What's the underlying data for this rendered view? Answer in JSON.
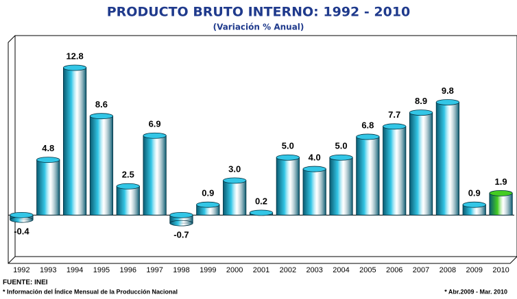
{
  "chart_data": {
    "type": "bar",
    "title": "PRODUCTO BRUTO INTERNO: 1992 - 2010",
    "subtitle": "(Variación % Anual)",
    "categories": [
      "1992",
      "1993",
      "1994",
      "1995",
      "1996",
      "1997",
      "1998",
      "1999",
      "2000",
      "2001",
      "2002",
      "2003",
      "2004",
      "2005",
      "2006",
      "2007",
      "2008",
      "2009",
      "2010"
    ],
    "values": [
      -0.4,
      4.8,
      12.8,
      8.6,
      2.5,
      6.9,
      -0.7,
      0.9,
      3.0,
      0.2,
      5.0,
      4.0,
      5.0,
      6.8,
      7.7,
      8.9,
      9.8,
      0.9,
      1.9
    ],
    "value_labels": [
      "-0.4",
      "4.8",
      "12.8",
      "8.6",
      "2.5",
      "6.9",
      "-0.7",
      "0.9",
      "3.0",
      "0.2",
      "5.0",
      "4.0",
      "5.0",
      "6.8",
      "7.7",
      "8.9",
      "9.8",
      "0.9",
      "1.9"
    ],
    "colors": [
      "#33c6e6",
      "#33c6e6",
      "#33c6e6",
      "#33c6e6",
      "#33c6e6",
      "#33c6e6",
      "#33c6e6",
      "#33c6e6",
      "#33c6e6",
      "#33c6e6",
      "#33c6e6",
      "#33c6e6",
      "#33c6e6",
      "#33c6e6",
      "#33c6e6",
      "#33c6e6",
      "#33c6e6",
      "#33c6e6",
      "#44cc22"
    ],
    "ylim": [
      -4.2,
      15
    ],
    "source": "FUENTE: INEI",
    "notes": [
      "* Información del Índice Mensual de la Producción Nacional",
      "* Abr.2009 - Mar. 2010"
    ]
  }
}
